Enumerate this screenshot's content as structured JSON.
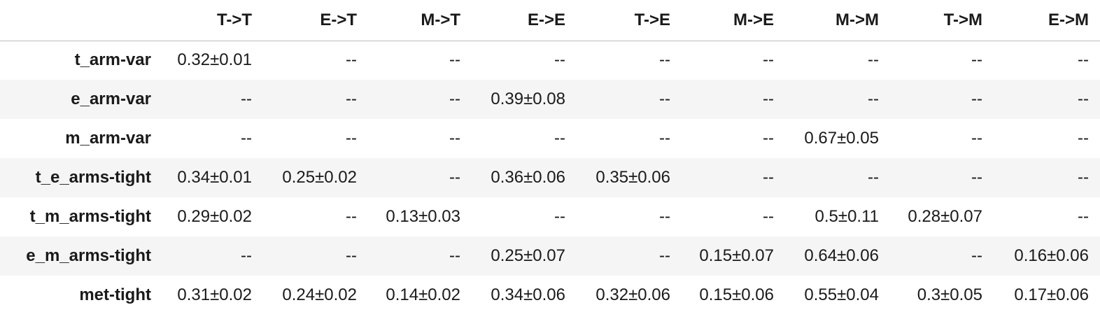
{
  "table": {
    "corner": "",
    "columns": [
      "T->T",
      "E->T",
      "M->T",
      "E->E",
      "T->E",
      "M->E",
      "M->M",
      "T->M",
      "E->M"
    ],
    "rows": [
      {
        "label": "t_arm-var",
        "cells": [
          "0.32±0.01",
          "--",
          "--",
          "--",
          "--",
          "--",
          "--",
          "--",
          "--"
        ]
      },
      {
        "label": "e_arm-var",
        "cells": [
          "--",
          "--",
          "--",
          "0.39±0.08",
          "--",
          "--",
          "--",
          "--",
          "--"
        ]
      },
      {
        "label": "m_arm-var",
        "cells": [
          "--",
          "--",
          "--",
          "--",
          "--",
          "--",
          "0.67±0.05",
          "--",
          "--"
        ]
      },
      {
        "label": "t_e_arms-tight",
        "cells": [
          "0.34±0.01",
          "0.25±0.02",
          "--",
          "0.36±0.06",
          "0.35±0.06",
          "--",
          "--",
          "--",
          "--"
        ]
      },
      {
        "label": "t_m_arms-tight",
        "cells": [
          "0.29±0.02",
          "--",
          "0.13±0.03",
          "--",
          "--",
          "--",
          "0.5±0.11",
          "0.28±0.07",
          "--"
        ]
      },
      {
        "label": "e_m_arms-tight",
        "cells": [
          "--",
          "--",
          "--",
          "0.25±0.07",
          "--",
          "0.15±0.07",
          "0.64±0.06",
          "--",
          "0.16±0.06"
        ]
      },
      {
        "label": "met-tight",
        "cells": [
          "0.31±0.02",
          "0.24±0.02",
          "0.14±0.02",
          "0.34±0.06",
          "0.32±0.06",
          "0.15±0.06",
          "0.55±0.04",
          "0.3±0.05",
          "0.17±0.06"
        ]
      }
    ]
  }
}
